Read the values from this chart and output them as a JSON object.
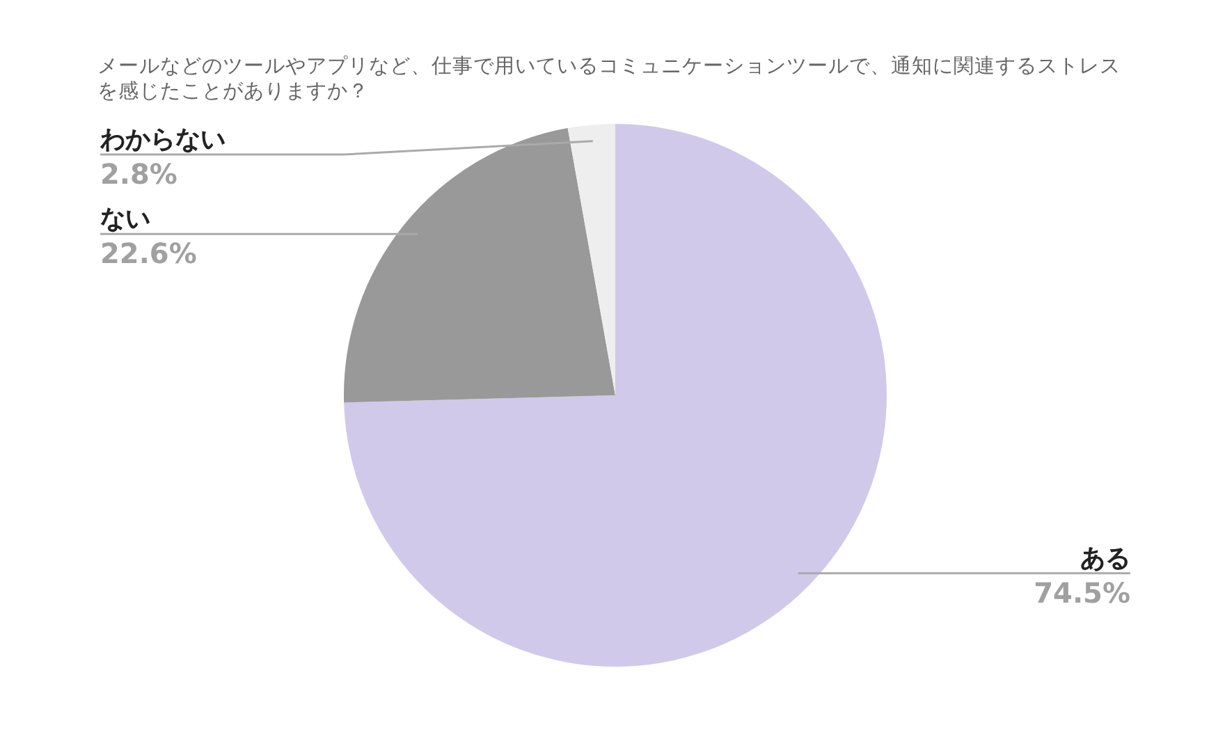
{
  "chart_data": {
    "type": "pie",
    "title": "メールなどのツールやアプリなど、仕事で用いているコミュニケーションツールで、通知に関連するストレスを感じたことがありますか？",
    "categories": [
      "ある",
      "ない",
      "わからない"
    ],
    "values": [
      74.5,
      22.6,
      2.8
    ],
    "value_labels": [
      "74.5%",
      "22.6%",
      "2.8%"
    ],
    "colors": [
      "#d1c9e9",
      "#999999",
      "#eeeeee"
    ]
  }
}
